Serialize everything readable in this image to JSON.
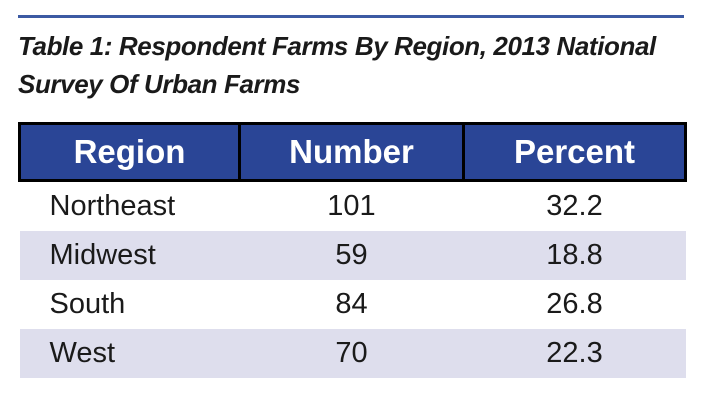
{
  "caption": {
    "line1": "Table 1: Respondent Farms By Region, 2013 National",
    "line2": "Survey Of Urban Farms"
  },
  "table": {
    "headers": [
      "Region",
      "Number",
      "Percent"
    ],
    "rows": [
      {
        "region": "Northeast",
        "number": "101",
        "percent": "32.2"
      },
      {
        "region": "Midwest",
        "number": "59",
        "percent": "18.8"
      },
      {
        "region": "South",
        "number": "84",
        "percent": "26.8"
      },
      {
        "region": "West",
        "number": "70",
        "percent": "22.3"
      }
    ]
  },
  "colors": {
    "header_bg": "#2A4596",
    "header_text": "#FFFFFF",
    "row_alt_bg": "#DEDEED",
    "rule": "#3C5AA3",
    "table_border": "#000000",
    "body_text": "#1A1A1A"
  }
}
